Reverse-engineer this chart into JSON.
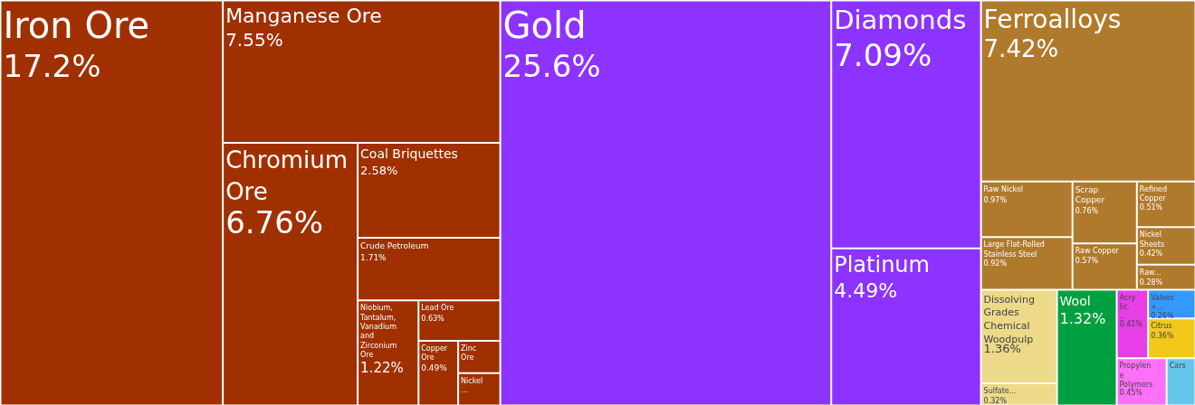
{
  "chart_data": {
    "type": "other",
    "categories": [
      "Iron Ore",
      "Manganese Ore",
      "Chromium Ore",
      "Coal Briquettes",
      "Crude Petroleum",
      "Niobium, Tantalum, Vanadium and Zirconium Ore",
      "Lead Ore",
      "Copper Ore",
      "Zinc Ore",
      "Nickel...",
      "Gold",
      "Diamonds",
      "Platinum",
      "Ferroalloys",
      "Raw Nickel",
      "Large Flat-Rolled Stainless Steel",
      "Scrap Copper",
      "Raw Copper",
      "Refined Copper",
      "Nickel Sheets",
      "Raw...",
      "Dissolving Grades Chemical Woodpulp",
      "Sulfate...",
      "Wool",
      "Acrylic...",
      "Valves +...",
      "Citrus",
      "Propylene Polymers",
      "Cars"
    ],
    "values": [
      17.2,
      7.55,
      6.76,
      2.58,
      1.71,
      1.22,
      0.63,
      0.49,
      null,
      null,
      25.6,
      7.09,
      4.49,
      7.42,
      0.97,
      0.92,
      0.76,
      0.57,
      0.51,
      0.42,
      0.28,
      1.36,
      0.32,
      1.32,
      0.41,
      0.26,
      0.36,
      0.45,
      null
    ],
    "value_labels": [
      "17.2%",
      "7.55%",
      "6.76%",
      "2.58%",
      "1.71%",
      "1.22%",
      "0.63%",
      "0.49%",
      null,
      null,
      "25.6%",
      "7.09%",
      "4.49%",
      "7.42%",
      "0.97%",
      "0.92%",
      "0.76%",
      "0.57%",
      "0.51%",
      "0.42%",
      "0.28%",
      "1.36%",
      "0.32%",
      "1.32%",
      "0.41%",
      "0.26%",
      "0.36%",
      "0.45%",
      null
    ],
    "colors": [
      "#a03000",
      "#a03000",
      "#a03000",
      "#a03000",
      "#a03000",
      "#a03000",
      "#a03000",
      "#a03000",
      "#a03000",
      "#a03000",
      "#8c33ff",
      "#8c33ff",
      "#8c33ff",
      "#b07a2c",
      "#b07a2c",
      "#b07a2c",
      "#b07a2c",
      "#b07a2c",
      "#b07a2c",
      "#b07a2c",
      "#b07a2c",
      "#ecd98a",
      "#ecd98a",
      "#00a040",
      "#e83ee8",
      "#3399ff",
      "#f2c81a",
      "#ff70f8",
      "#66c6ea"
    ]
  }
}
